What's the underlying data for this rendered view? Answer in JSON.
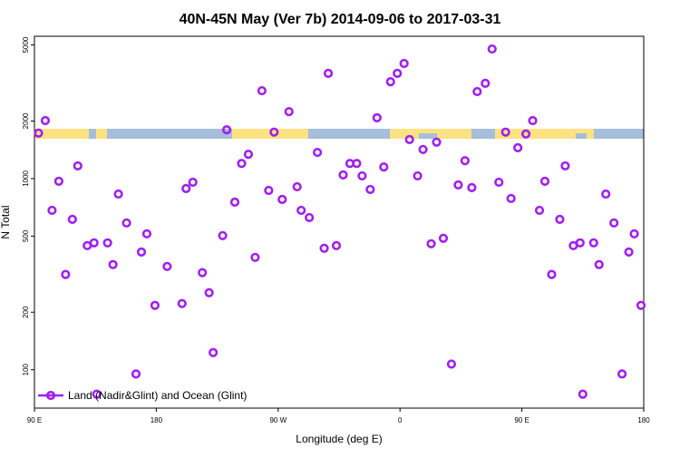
{
  "chart_data": {
    "type": "scatter",
    "title": "40N-45N May (Ver 7b)   2014-09-06 to 2017-03-31",
    "xlabel": "Longitude (deg E)",
    "ylabel": "N Total",
    "log_y": true,
    "legend": "bottomleft",
    "xlim": [
      90,
      540
    ],
    "ylim": [
      63,
      5550
    ],
    "xticks": [
      {
        "value": 90,
        "label": "90 E"
      },
      {
        "value": 180,
        "label": "180"
      },
      {
        "value": 270,
        "label": "90 W"
      },
      {
        "value": 360,
        "label": "0"
      },
      {
        "value": 450,
        "label": "90 E"
      },
      {
        "value": 540,
        "label": "180"
      }
    ],
    "yticks": [
      100,
      200,
      500,
      1000,
      2000,
      5000
    ],
    "x": [
      93,
      98,
      103,
      108,
      113,
      118,
      122,
      129,
      134,
      136,
      144,
      148,
      152,
      158,
      165,
      169,
      173,
      179,
      188,
      199,
      202,
      207,
      214,
      219,
      222,
      229,
      232,
      238,
      243,
      248,
      253,
      258,
      263,
      267,
      273,
      278,
      284,
      287,
      293,
      299,
      304,
      307,
      313,
      318,
      323,
      328,
      332,
      338,
      343,
      348,
      353,
      358,
      363,
      367,
      373,
      377,
      383,
      387,
      392,
      398,
      403,
      408,
      413,
      417,
      423,
      428,
      433,
      438,
      442,
      447,
      453,
      458,
      463,
      467,
      472,
      478,
      482,
      488,
      493,
      495,
      503,
      507,
      512,
      518,
      524,
      529,
      533,
      538
    ],
    "series": [
      {
        "name": "Land (Nadir&Glint) and Ocean (Glint)",
        "color": "#a020f0",
        "values": [
          1730,
          2010,
          682,
          968,
          315,
          612,
          1165,
          446,
          461,
          74.5,
          461,
          355,
          830,
          586,
          95,
          413,
          514,
          217,
          347,
          222,
          887,
          957,
          322,
          253,
          123,
          503,
          1800,
          753,
          1200,
          1340,
          387,
          2880,
          867,
          1750,
          778,
          2240,
          906,
          682,
          625,
          1370,
          432,
          3550,
          446,
          1045,
          1200,
          1200,
          1033,
          877,
          2080,
          1150,
          3210,
          3550,
          4000,
          1600,
          1033,
          1420,
          456,
          1550,
          487,
          107,
          927,
          1240,
          897,
          2850,
          3150,
          4760,
          957,
          1750,
          787,
          1450,
          1710,
          2010,
          682,
          968,
          315,
          612,
          1165,
          446,
          461,
          74.5,
          461,
          355,
          830,
          586,
          95,
          413,
          514,
          217
        ]
      }
    ]
  }
}
